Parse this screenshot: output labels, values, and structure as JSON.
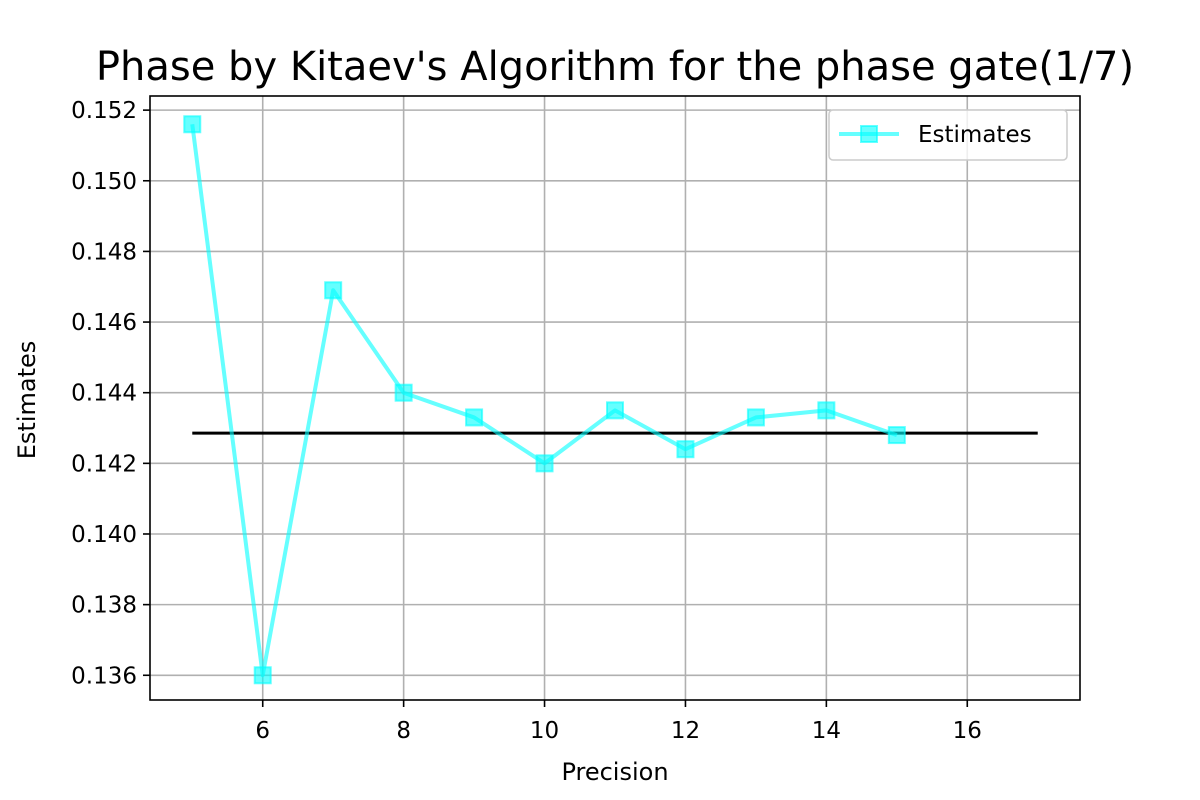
{
  "chart_data": {
    "type": "line",
    "title": "Phase by Kitaev's Algorithm for the phase gate(1/7)",
    "xlabel": "Precision",
    "ylabel": "Estimates",
    "xlim": [
      4.4,
      17.6
    ],
    "ylim": [
      0.1353,
      0.1524
    ],
    "xticks": [
      6,
      8,
      10,
      12,
      14,
      16
    ],
    "yticks": [
      0.136,
      0.138,
      0.14,
      0.142,
      0.144,
      0.146,
      0.148,
      0.15,
      0.152
    ],
    "ytick_labels": [
      "0.136",
      "0.138",
      "0.140",
      "0.142",
      "0.144",
      "0.146",
      "0.148",
      "0.150",
      "0.152"
    ],
    "grid": true,
    "legend_position": "top-right",
    "series": [
      {
        "name": "Estimates",
        "color": "#00ffff",
        "marker": "square",
        "x": [
          5,
          6,
          7,
          8,
          9,
          10,
          11,
          12,
          13,
          14,
          15
        ],
        "y": [
          0.1516,
          0.136,
          0.1469,
          0.144,
          0.1433,
          0.142,
          0.1435,
          0.1424,
          0.1433,
          0.1435,
          0.1428
        ]
      }
    ],
    "reference_line": {
      "x": [
        5,
        17
      ],
      "y": 0.142857,
      "color": "#000000"
    }
  }
}
